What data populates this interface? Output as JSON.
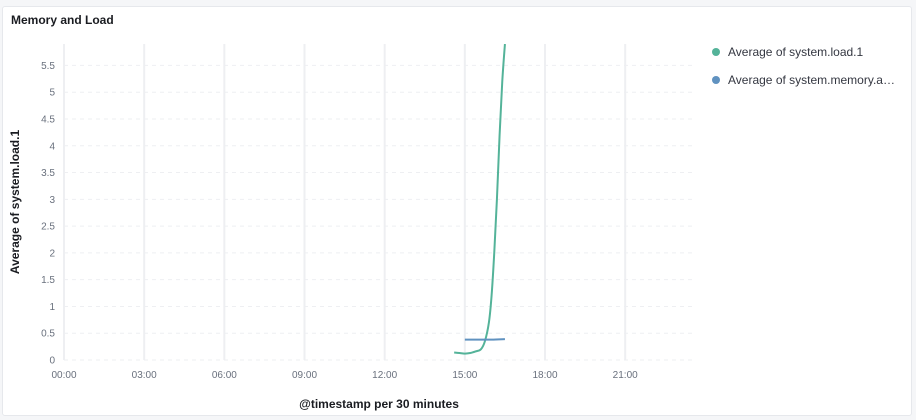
{
  "panel": {
    "title": "Memory and Load"
  },
  "chart_data": {
    "type": "line",
    "title": "Memory and Load",
    "xlabel": "@timestamp per 30 minutes",
    "ylabel": "Average of system.load.1",
    "x_ticks": [
      "00:00",
      "03:00",
      "06:00",
      "09:00",
      "12:00",
      "15:00",
      "18:00",
      "21:00"
    ],
    "x_tick_hours": [
      0,
      3,
      6,
      9,
      12,
      15,
      18,
      21
    ],
    "x_range_hours": [
      0,
      23.5
    ],
    "y_ticks": [
      "0",
      "0.5",
      "1",
      "1.5",
      "2",
      "2.5",
      "3",
      "3.5",
      "4",
      "4.5",
      "5",
      "5.5"
    ],
    "y_tick_values": [
      0,
      0.5,
      1,
      1.5,
      2,
      2.5,
      3,
      3.5,
      4,
      4.5,
      5,
      5.5
    ],
    "ylim": [
      0,
      5.9
    ],
    "grid": true,
    "legend_position": "right",
    "series": [
      {
        "name": "Average of system.load.1",
        "color": "#54b399",
        "x_hours": [
          14.6,
          14.8,
          15.0,
          15.2,
          15.4,
          15.6,
          15.75,
          15.9,
          16.0,
          16.1,
          16.2,
          16.3,
          16.4,
          16.5
        ],
        "values": [
          0.14,
          0.13,
          0.12,
          0.13,
          0.16,
          0.2,
          0.35,
          0.7,
          1.2,
          2.0,
          3.0,
          4.2,
          5.2,
          5.9
        ]
      },
      {
        "name": "Average of system.memory.actual.used.pct",
        "color": "#6092c0",
        "x_hours": [
          15.0,
          15.5,
          16.0,
          16.5
        ],
        "values": [
          0.38,
          0.38,
          0.38,
          0.39
        ]
      }
    ]
  }
}
